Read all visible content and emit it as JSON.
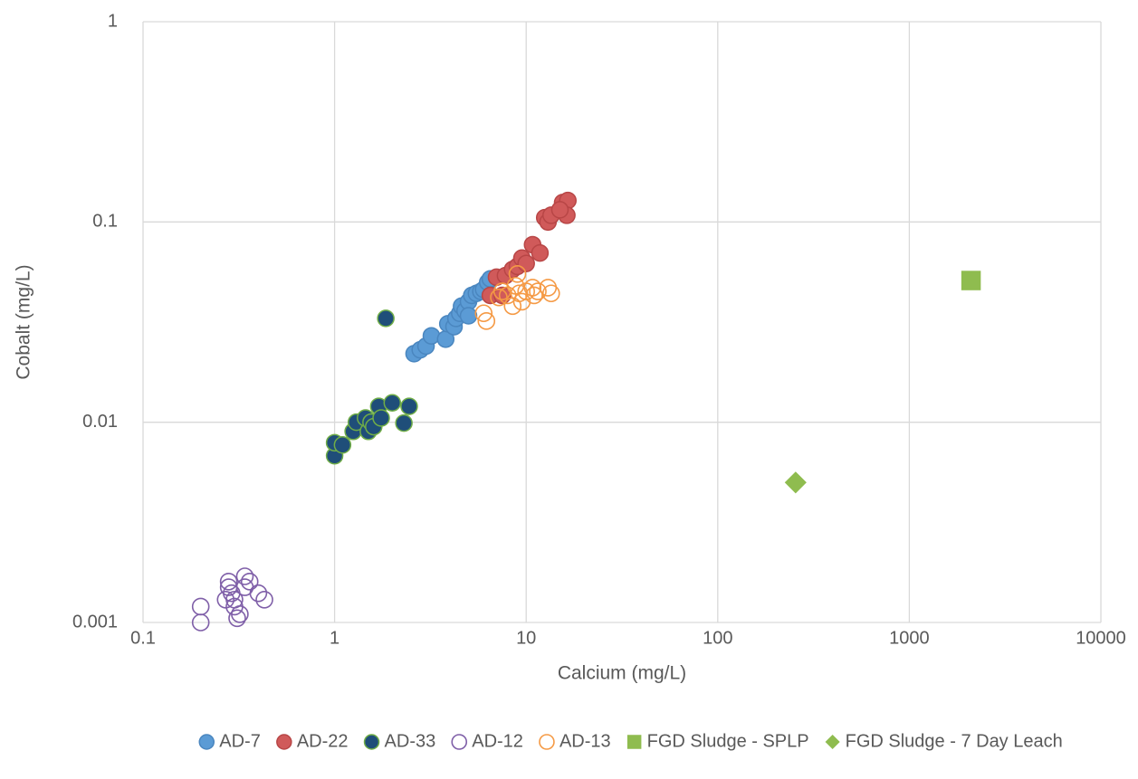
{
  "chart_data": {
    "type": "scatter",
    "xlabel": "Calcium (mg/L)",
    "ylabel": "Cobalt (mg/L)",
    "xscale": "log",
    "yscale": "log",
    "xlim": [
      0.1,
      10000
    ],
    "ylim": [
      0.001,
      1
    ],
    "xticks": [
      0.1,
      1,
      10,
      100,
      1000,
      10000
    ],
    "yticks": [
      0.001,
      0.01,
      0.1,
      1
    ],
    "grid": true,
    "legend": "bottom",
    "series": [
      {
        "name": "AD-7",
        "color": "#5b9bd5",
        "edgecolor": "#4a86bf",
        "marker": "circle",
        "filled": true,
        "x": [
          2.6,
          2.8,
          3.0,
          3.2,
          3.8,
          3.9,
          4.2,
          4.3,
          4.5,
          4.6,
          4.8,
          5.0,
          5.0,
          5.2,
          5.5,
          5.8,
          6.0,
          6.3,
          6.5
        ],
        "y": [
          0.022,
          0.023,
          0.024,
          0.027,
          0.026,
          0.031,
          0.03,
          0.033,
          0.035,
          0.038,
          0.036,
          0.04,
          0.034,
          0.043,
          0.044,
          0.045,
          0.046,
          0.05,
          0.052
        ]
      },
      {
        "name": "AD-22",
        "color": "#d05a5a",
        "edgecolor": "#b84646",
        "marker": "circle",
        "filled": true,
        "x": [
          6.5,
          7.0,
          7.5,
          7.8,
          8.5,
          9.0,
          9.5,
          10.0,
          10.8,
          11.8,
          12.5,
          13.0,
          13.5,
          15.5,
          16.5,
          16.3,
          15.0
        ],
        "y": [
          0.043,
          0.053,
          0.043,
          0.054,
          0.058,
          0.06,
          0.066,
          0.062,
          0.077,
          0.07,
          0.105,
          0.1,
          0.108,
          0.125,
          0.128,
          0.108,
          0.115
        ]
      },
      {
        "name": "AD-33",
        "color": "#1f4e79",
        "edgecolor": "#70ad47",
        "marker": "circle",
        "filled": true,
        "x": [
          1.0,
          1.0,
          1.1,
          1.25,
          1.3,
          1.45,
          1.5,
          1.55,
          1.6,
          1.7,
          1.75,
          1.85,
          2.0,
          2.3,
          2.45
        ],
        "y": [
          0.0068,
          0.0079,
          0.0077,
          0.009,
          0.01,
          0.0105,
          0.009,
          0.01,
          0.0095,
          0.012,
          0.0105,
          0.033,
          0.0125,
          0.0099,
          0.012
        ]
      },
      {
        "name": "AD-12",
        "color": "#7f5fa8",
        "marker": "circle",
        "filled": false,
        "x": [
          0.2,
          0.2,
          0.27,
          0.28,
          0.28,
          0.29,
          0.3,
          0.3,
          0.31,
          0.32,
          0.34,
          0.34,
          0.36,
          0.4,
          0.43
        ],
        "y": [
          0.001,
          0.0012,
          0.0013,
          0.0015,
          0.0016,
          0.0014,
          0.0012,
          0.0013,
          0.00105,
          0.0011,
          0.0017,
          0.0015,
          0.0016,
          0.0014,
          0.0013
        ]
      },
      {
        "name": "AD-13",
        "color": "#f59a45",
        "marker": "circle",
        "filled": false,
        "x": [
          6.0,
          6.2,
          7.2,
          7.5,
          8.0,
          8.5,
          8.8,
          9.0,
          9.2,
          9.5,
          10.0,
          10.8,
          11.0,
          11.5,
          13.0,
          13.5
        ],
        "y": [
          0.035,
          0.032,
          0.042,
          0.045,
          0.043,
          0.038,
          0.048,
          0.055,
          0.044,
          0.04,
          0.045,
          0.047,
          0.043,
          0.045,
          0.047,
          0.044
        ]
      },
      {
        "name": "FGD Sludge - SPLP",
        "color": "#8fbc4f",
        "marker": "square",
        "filled": true,
        "x": [
          2100
        ],
        "y": [
          0.051
        ]
      },
      {
        "name": "FGD Sludge - 7 Day Leach",
        "color": "#8fbc4f",
        "marker": "diamond",
        "filled": true,
        "x": [
          255
        ],
        "y": [
          0.005
        ]
      }
    ]
  }
}
